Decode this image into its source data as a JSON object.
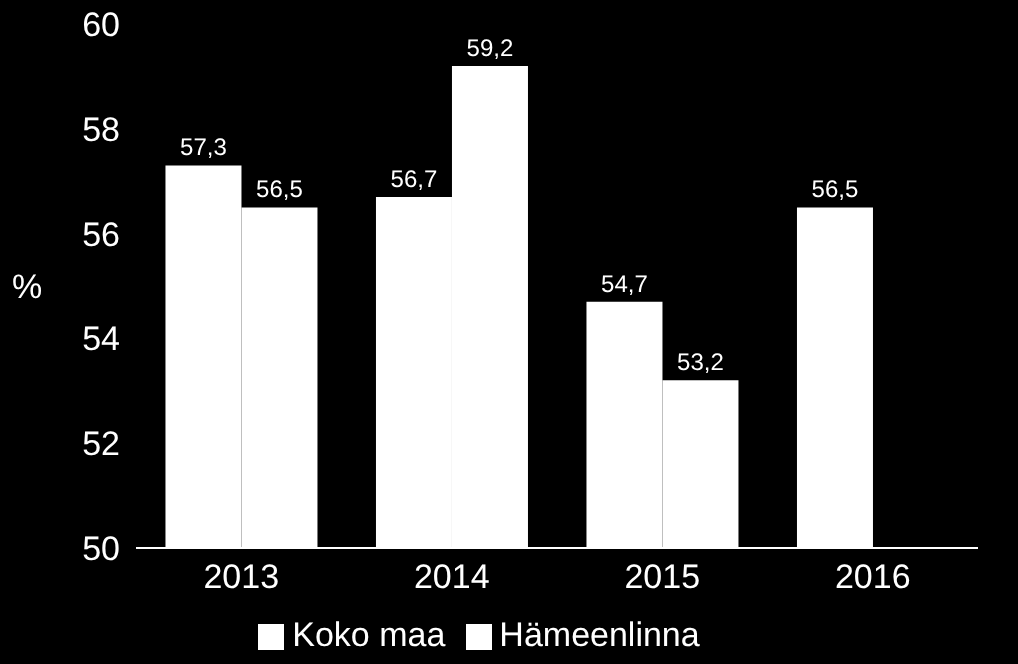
{
  "chart_data": {
    "type": "bar",
    "ylabel": "%",
    "categories": [
      "2013",
      "2014",
      "2015",
      "2016"
    ],
    "series": [
      {
        "name": "Koko maa",
        "color": "#ffffff",
        "values": [
          57.3,
          56.7,
          54.7,
          56.5
        ],
        "value_labels": [
          "57,3",
          "56,7",
          "54,7",
          "56,5"
        ]
      },
      {
        "name": "Hämeenlinna",
        "color": "#ffffff",
        "values": [
          56.5,
          59.2,
          53.2,
          null
        ],
        "value_labels": [
          "56,5",
          "59,2",
          "53,2",
          null
        ]
      }
    ],
    "ylim": [
      50,
      60
    ],
    "yticks": [
      50,
      52,
      54,
      56,
      58,
      60
    ],
    "grid": false,
    "legend": "bottom"
  }
}
